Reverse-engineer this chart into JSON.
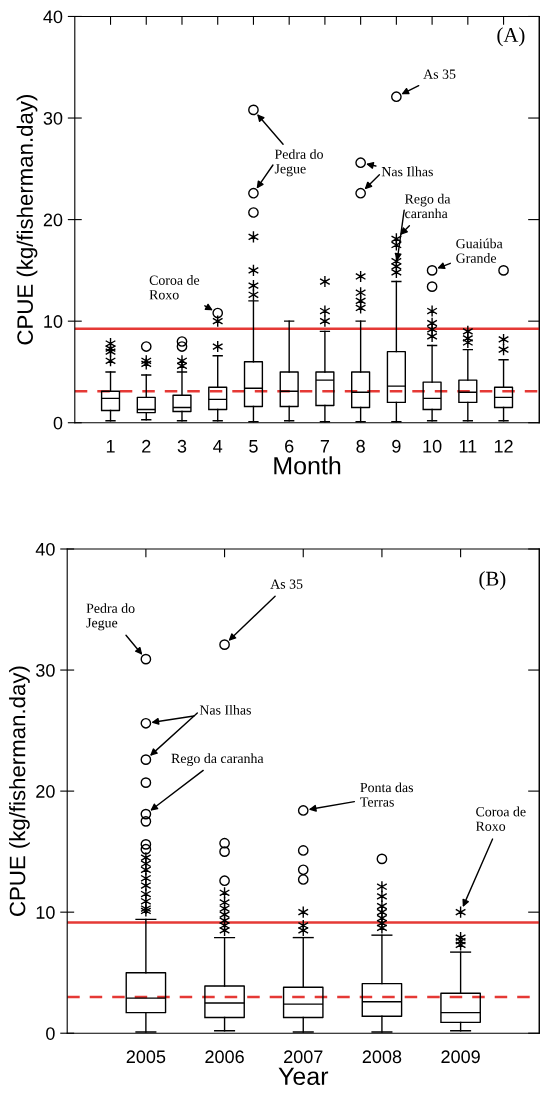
{
  "chart_data": [
    {
      "type": "box",
      "xlabel": "Month",
      "ylabel": "CPUE (kg/fisherman.day)",
      "x": [
        1,
        2,
        3,
        4,
        5,
        6,
        7,
        8,
        9,
        10,
        11,
        12
      ],
      "xlim": [
        0,
        13
      ],
      "xticks": [
        1,
        2,
        3,
        4,
        5,
        6,
        7,
        8,
        9,
        10,
        11,
        12
      ],
      "ylim": [
        0,
        40
      ],
      "yticks": [
        0,
        10,
        20,
        30,
        40
      ],
      "grid": false,
      "legend": false,
      "marker": "star",
      "color": "#000000",
      "boxes": [
        {
          "low": 0.2,
          "q1": 1.2,
          "median": 2.4,
          "q3": 3.1,
          "high": 5.0,
          "outliers": [
            7.8,
            7.3,
            7.0,
            6.1
          ]
        },
        {
          "low": 0.3,
          "q1": 1.0,
          "median": 1.3,
          "q3": 2.5,
          "high": 4.7,
          "outliers": [
            6.1,
            5.8
          ]
        },
        {
          "low": 0.2,
          "q1": 1.1,
          "median": 1.5,
          "q3": 2.7,
          "high": 5.0,
          "outliers": [
            6.1,
            5.6
          ]
        },
        {
          "low": 0.2,
          "q1": 1.3,
          "median": 2.3,
          "q3": 3.5,
          "high": 6.6,
          "outliers": [
            7.5,
            10.0
          ]
        },
        {
          "low": 0.1,
          "q1": 1.6,
          "median": 3.4,
          "q3": 6.0,
          "high": 12.0,
          "outliers": [
            12.6,
            13.5,
            15.0,
            18.3
          ]
        },
        {
          "low": 0.2,
          "q1": 1.6,
          "median": 3.1,
          "q3": 5.0,
          "high": 10.0
        },
        {
          "low": 0.1,
          "q1": 1.7,
          "median": 4.2,
          "q3": 5.0,
          "high": 9.0,
          "outliers": [
            10.0,
            11.0,
            13.9
          ]
        },
        {
          "low": 0.1,
          "q1": 1.5,
          "median": 3.0,
          "q3": 5.0,
          "high": 10.0,
          "outliers": [
            11.3,
            12.0,
            12.8,
            14.4
          ]
        },
        {
          "low": 0.1,
          "q1": 2.0,
          "median": 3.6,
          "q3": 7.0,
          "high": 13.9,
          "outliers": [
            14.8,
            15.4,
            15.9,
            17.5,
            18.1
          ]
        },
        {
          "low": 0.2,
          "q1": 1.3,
          "median": 2.4,
          "q3": 4.0,
          "high": 7.6,
          "outliers": [
            8.5,
            9.2,
            9.8,
            11.0
          ]
        },
        {
          "low": 0.2,
          "q1": 2.0,
          "median": 3.0,
          "q3": 4.2,
          "high": 7.2,
          "outliers": [
            7.9,
            8.3,
            9.0
          ]
        },
        {
          "low": 0.2,
          "q1": 1.5,
          "median": 2.5,
          "q3": 3.5,
          "high": 6.2,
          "outliers": [
            7.2,
            8.2
          ]
        }
      ],
      "series": [
        {
          "type": "scatter",
          "color": "#000000",
          "marker": "circle",
          "x": [
            2,
            3,
            3,
            4,
            5,
            5,
            5,
            8,
            8,
            9,
            10,
            10,
            12
          ],
          "values": [
            7.5,
            8.0,
            7.5,
            10.8,
            20.7,
            22.6,
            30.8,
            22.6,
            25.6,
            32.1,
            13.4,
            15.0,
            15.0
          ]
        }
      ],
      "ref_lines": [
        {
          "axis": "y",
          "value": 9.25,
          "color": "#e53935",
          "line_style": "solid"
        },
        {
          "axis": "y",
          "value": 3.1,
          "color": "#e53935",
          "line_style": "dashed"
        }
      ],
      "annotations": [
        {
          "text": "Coroa de\nRoxo",
          "x": 4,
          "y": 10.8
        },
        {
          "text": "Pedra do\nJegue",
          "x": 5,
          "y": 30.8
        },
        {
          "text": "As 35",
          "x": 9,
          "y": 32.1
        },
        {
          "text": "Nas Ilhas",
          "x": 8,
          "y": 25.6
        },
        "Rego da\ncaranha",
        {
          "text": "Guaiúba\nGrande",
          "x": 10,
          "y": 15.0
        },
        "(A)"
      ]
    },
    {
      "type": "box",
      "xlabel": "Year",
      "ylabel": "CPUE (kg/fisherman.day)",
      "x": [
        2005,
        2006,
        2007,
        2008,
        2009
      ],
      "xlim": [
        2004,
        2010
      ],
      "xticks": [
        2005,
        2006,
        2007,
        2008,
        2009
      ],
      "ylim": [
        0,
        40
      ],
      "yticks": [
        0,
        10,
        20,
        30,
        40
      ],
      "grid": false,
      "legend": false,
      "marker": "star",
      "color": "#000000",
      "boxes": [
        {
          "low": 0.1,
          "q1": 1.7,
          "median": 2.9,
          "q3": 5.0,
          "high": 9.4,
          "outliers": [
            10.1,
            10.3,
            10.9,
            11.5,
            12.2,
            12.8,
            13.5,
            14.0,
            14.5
          ]
        },
        {
          "low": 0.2,
          "q1": 1.3,
          "median": 2.5,
          "q3": 3.9,
          "high": 7.9,
          "outliers": [
            8.5,
            8.9,
            9.3,
            9.8,
            10.3,
            10.8,
            11.6
          ]
        },
        {
          "low": 0.1,
          "q1": 1.3,
          "median": 2.4,
          "q3": 3.8,
          "high": 7.9,
          "outliers": [
            8.5,
            8.9,
            10.0
          ]
        },
        {
          "low": 0.1,
          "q1": 1.4,
          "median": 2.6,
          "q3": 4.1,
          "high": 8.1,
          "outliers": [
            8.7,
            9.1,
            9.5,
            10.0,
            10.5,
            11.3,
            12.1
          ]
        },
        {
          "low": 0.2,
          "q1": 0.9,
          "median": 1.7,
          "q3": 3.3,
          "high": 6.7,
          "outliers": [
            7.3,
            7.6,
            7.9,
            10.0
          ]
        }
      ],
      "series": [
        {
          "type": "scatter",
          "color": "#000000",
          "marker": "circle",
          "x": [
            2005,
            2005,
            2005,
            2005,
            2005,
            2005,
            2005,
            2005,
            2006,
            2006,
            2006,
            2006,
            2007,
            2007,
            2007,
            2007,
            2008
          ],
          "values": [
            15.2,
            15.6,
            17.5,
            18.1,
            20.7,
            22.6,
            25.6,
            30.9,
            12.6,
            15.0,
            15.7,
            32.1,
            12.7,
            13.5,
            15.1,
            18.4,
            14.4
          ]
        }
      ],
      "ref_lines": [
        {
          "axis": "y",
          "value": 9.15,
          "color": "#e53935",
          "line_style": "solid"
        },
        {
          "axis": "y",
          "value": 3.0,
          "color": "#e53935",
          "line_style": "dashed"
        }
      ],
      "annotations": [
        {
          "text": "Pedra do\nJegue",
          "x": 2005,
          "y": 30.9
        },
        {
          "text": "As 35",
          "x": 2006,
          "y": 32.1
        },
        {
          "text": "Nas Ilhas",
          "x": 2005,
          "y": 25.6
        },
        {
          "text": "Rego da caranha",
          "x": 2005,
          "y": 18.1
        },
        {
          "text": "Ponta das\nTerras",
          "x": 2007,
          "y": 18.4
        },
        "Coroa de\nRoxo",
        "(B)"
      ]
    }
  ]
}
